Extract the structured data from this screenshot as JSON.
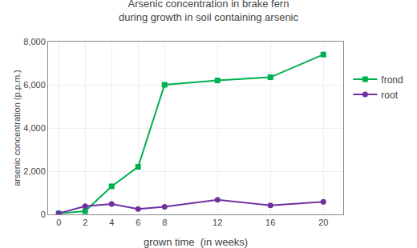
{
  "chart_data": {
    "type": "line",
    "title": "Arsenic concentration in brake fern\nduring growth in soil containing arsenic",
    "xlabel": "grown time  (in weeks)",
    "ylabel": "arsenic concentration (p.p.m.)",
    "x": [
      0,
      2,
      4,
      6,
      8,
      12,
      16,
      20
    ],
    "series": [
      {
        "name": "frond",
        "color": "#00b050",
        "marker": "square",
        "line_style": "solid",
        "values": [
          50,
          150,
          1300,
          2200,
          6000,
          6200,
          6350,
          7400
        ]
      },
      {
        "name": "root",
        "color": "#7030a0",
        "marker": "circle",
        "line_style": "solid",
        "values": [
          50,
          380,
          480,
          250,
          350,
          680,
          420,
          580
        ]
      }
    ],
    "xlim": [
      -0.8,
      21.5
    ],
    "xticks": [
      0,
      2,
      4,
      6,
      8,
      12,
      16,
      20
    ],
    "ylim": [
      0,
      8000
    ],
    "yticks": [
      0,
      {
        "value": 2000,
        "label": "2,000"
      },
      {
        "value": 4000,
        "label": "4,000"
      },
      {
        "value": 6000,
        "label": "6,000"
      },
      {
        "value": 8000,
        "label": "8,000"
      }
    ],
    "grid": true,
    "legend": "right"
  }
}
